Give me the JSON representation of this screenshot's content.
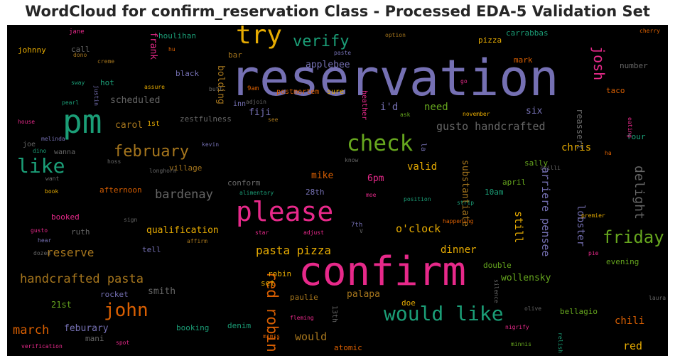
{
  "title": "WordCloud for confirm_reservation Class - Processed EDA-5 Validation Set",
  "chart_data": {
    "type": "wordcloud",
    "title": "WordCloud for confirm_reservation Class - Processed EDA-5 Validation Set",
    "background": "#000000",
    "colormap": [
      "#1b9e77",
      "#d95f02",
      "#7570b3",
      "#e7298a",
      "#66a61e",
      "#e6ab02",
      "#a6761d",
      "#666666"
    ],
    "words": [
      {
        "text": "reservation",
        "size": 70,
        "color": "#7570b3"
      },
      {
        "text": "confirm",
        "size": 56,
        "color": "#e7298a"
      },
      {
        "text": "pm",
        "size": 46,
        "color": "#1b9e77"
      },
      {
        "text": "please",
        "size": 38,
        "color": "#e7298a"
      },
      {
        "text": "try",
        "size": 36,
        "color": "#e6ab02"
      },
      {
        "text": "check",
        "size": 31,
        "color": "#66a61e"
      },
      {
        "text": "would like",
        "size": 28,
        "color": "#1b9e77"
      },
      {
        "text": "like",
        "size": 28,
        "color": "#1b9e77"
      },
      {
        "text": "john",
        "size": 26,
        "color": "#d95f02"
      },
      {
        "text": "friday",
        "size": 24,
        "color": "#66a61e"
      },
      {
        "text": "verify",
        "size": 22,
        "color": "#1b9e77"
      },
      {
        "text": "february",
        "size": 22,
        "color": "#a6761d"
      },
      {
        "text": "red robin",
        "size": 21,
        "color": "#d95f02"
      },
      {
        "text": "josh",
        "size": 20,
        "color": "#e7298a"
      },
      {
        "text": "delight",
        "size": 18,
        "color": "#666666"
      },
      {
        "text": "bardenay",
        "size": 17,
        "color": "#666666"
      },
      {
        "text": "handcrafted pasta",
        "size": 17,
        "color": "#a6761d"
      },
      {
        "text": "march",
        "size": 17,
        "color": "#d95f02"
      },
      {
        "text": "pasta pizza",
        "size": 16,
        "color": "#e6ab02"
      },
      {
        "text": "reserve",
        "size": 16,
        "color": "#a6761d"
      },
      {
        "text": "o'clock",
        "size": 15,
        "color": "#e6ab02"
      },
      {
        "text": "still",
        "size": 15,
        "color": "#e6ab02"
      },
      {
        "text": "gusto handcrafted",
        "size": 15,
        "color": "#666666"
      },
      {
        "text": "arriere pensee",
        "size": 15,
        "color": "#7570b3"
      },
      {
        "text": "would",
        "size": 15,
        "color": "#a6761d"
      },
      {
        "text": "red",
        "size": 15,
        "color": "#e6ab02"
      },
      {
        "text": "i'd",
        "size": 14,
        "color": "#7570b3"
      },
      {
        "text": "need",
        "size": 14,
        "color": "#66a61e"
      },
      {
        "text": "chris",
        "size": 14,
        "color": "#e6ab02"
      },
      {
        "text": "lobster",
        "size": 14,
        "color": "#7570b3"
      },
      {
        "text": "dinner",
        "size": 14,
        "color": "#e6ab02"
      },
      {
        "text": "chili",
        "size": 14,
        "color": "#d95f02"
      },
      {
        "text": "valid",
        "size": 14,
        "color": "#e6ab02"
      },
      {
        "text": "substantiate",
        "size": 13,
        "color": "#a6761d"
      },
      {
        "text": "qualification",
        "size": 13,
        "color": "#e6ab02"
      },
      {
        "text": "wollensky",
        "size": 13,
        "color": "#66a61e"
      },
      {
        "text": "bolding",
        "size": 13,
        "color": "#a6761d"
      },
      {
        "text": "applebee",
        "size": 13,
        "color": "#7570b3"
      },
      {
        "text": "frank",
        "size": 13,
        "color": "#e7298a"
      },
      {
        "text": "six",
        "size": 13,
        "color": "#7570b3"
      },
      {
        "text": "scheduled",
        "size": 13,
        "color": "#666666"
      },
      {
        "text": "carol",
        "size": 13,
        "color": "#a6761d"
      },
      {
        "text": "fiji",
        "size": 13,
        "color": "#7570b3"
      },
      {
        "text": "6pm",
        "size": 13,
        "color": "#e7298a"
      },
      {
        "text": "mike",
        "size": 13,
        "color": "#d95f02"
      },
      {
        "text": "smith",
        "size": 13,
        "color": "#666666"
      },
      {
        "text": "feburary",
        "size": 13,
        "color": "#7570b3"
      },
      {
        "text": "palapa",
        "size": 13,
        "color": "#a6761d"
      },
      {
        "text": "21st",
        "size": 12,
        "color": "#66a61e"
      },
      {
        "text": "reassert",
        "size": 12,
        "color": "#666666"
      },
      {
        "text": "sally",
        "size": 11,
        "color": "#66a61e"
      },
      {
        "text": "zestfulness",
        "size": 11,
        "color": "#666666"
      },
      {
        "text": "black",
        "size": 11,
        "color": "#7570b3"
      },
      {
        "text": "mark",
        "size": 11,
        "color": "#d95f02"
      },
      {
        "text": "carrabbas",
        "size": 11,
        "color": "#1b9e77"
      },
      {
        "text": "pizza",
        "size": 11,
        "color": "#e6ab02"
      },
      {
        "text": "number",
        "size": 11,
        "color": "#666666"
      },
      {
        "text": "taco",
        "size": 11,
        "color": "#d95f02"
      },
      {
        "text": "four",
        "size": 11,
        "color": "#1b9e77"
      },
      {
        "text": "houlihan",
        "size": 11,
        "color": "#1b9e77"
      },
      {
        "text": "call",
        "size": 11,
        "color": "#666666"
      },
      {
        "text": "bar",
        "size": 11,
        "color": "#a6761d"
      },
      {
        "text": "hot",
        "size": 11,
        "color": "#1b9e77"
      },
      {
        "text": "village",
        "size": 11,
        "color": "#a6761d"
      },
      {
        "text": "afternoon",
        "size": 11,
        "color": "#d95f02"
      },
      {
        "text": "booked",
        "size": 11,
        "color": "#e7298a"
      },
      {
        "text": "ruth",
        "size": 11,
        "color": "#666666"
      },
      {
        "text": "tell",
        "size": 11,
        "color": "#7570b3"
      },
      {
        "text": "rocket",
        "size": 11,
        "color": "#7570b3"
      },
      {
        "text": "mani",
        "size": 11,
        "color": "#666666"
      },
      {
        "text": "booking",
        "size": 11,
        "color": "#1b9e77"
      },
      {
        "text": "denim",
        "size": 11,
        "color": "#1b9e77"
      },
      {
        "text": "doe",
        "size": 11,
        "color": "#e6ab02"
      },
      {
        "text": "atomic",
        "size": 11,
        "color": "#d95f02"
      },
      {
        "text": "bellagio",
        "size": 11,
        "color": "#66a61e"
      },
      {
        "text": "evening",
        "size": 11,
        "color": "#66a61e"
      },
      {
        "text": "double",
        "size": 11,
        "color": "#66a61e"
      },
      {
        "text": "paulie",
        "size": 11,
        "color": "#a6761d"
      },
      {
        "text": "robin",
        "size": 11,
        "color": "#e6ab02"
      },
      {
        "text": "set",
        "size": 11,
        "color": "#e6ab02"
      },
      {
        "text": "10am",
        "size": 11,
        "color": "#1b9e77"
      },
      {
        "text": "april",
        "size": 11,
        "color": "#66a61e"
      },
      {
        "text": "28th",
        "size": 11,
        "color": "#7570b3"
      },
      {
        "text": "conform",
        "size": 11,
        "color": "#666666"
      },
      {
        "text": "johnny",
        "size": 11,
        "color": "#e6ab02"
      },
      {
        "text": "joe",
        "size": 10,
        "color": "#666666"
      },
      {
        "text": "wanna",
        "size": 10,
        "color": "#666666"
      },
      {
        "text": "heather",
        "size": 10,
        "color": "#e7298a"
      },
      {
        "text": "sure",
        "size": 10,
        "color": "#e6ab02"
      },
      {
        "text": "postmortem",
        "size": 10,
        "color": "#d95f02"
      },
      {
        "text": "inn",
        "size": 10,
        "color": "#7570b3"
      },
      {
        "text": "1st",
        "size": 10,
        "color": "#e6ab02"
      },
      {
        "text": "la",
        "size": 10,
        "color": "#7570b3"
      },
      {
        "text": "13th",
        "size": 10,
        "color": "#666666"
      },
      {
        "text": "7th",
        "size": 9,
        "color": "#7570b3"
      },
      {
        "text": "9am",
        "size": 9,
        "color": "#d95f02"
      },
      {
        "text": "jane",
        "size": 9,
        "color": "#e7298a"
      },
      {
        "text": "dono",
        "size": 8,
        "color": "#a6761d"
      },
      {
        "text": "creme",
        "size": 8,
        "color": "#a6761d"
      },
      {
        "text": "hu",
        "size": 8,
        "color": "#d95f02"
      },
      {
        "text": "sway",
        "size": 8,
        "color": "#1b9e77"
      },
      {
        "text": "justin",
        "size": 8,
        "color": "#7570b3"
      },
      {
        "text": "pearl",
        "size": 8,
        "color": "#1b9e77"
      },
      {
        "text": "assure",
        "size": 8,
        "color": "#e6ab02"
      },
      {
        "text": "butt",
        "size": 8,
        "color": "#666666"
      },
      {
        "text": "adjoin",
        "size": 8,
        "color": "#666666"
      },
      {
        "text": "see",
        "size": 8,
        "color": "#a6761d"
      },
      {
        "text": "option",
        "size": 8,
        "color": "#a6761d"
      },
      {
        "text": "paste",
        "size": 8,
        "color": "#7570b3"
      },
      {
        "text": "go",
        "size": 8,
        "color": "#e7298a"
      },
      {
        "text": "november",
        "size": 8,
        "color": "#e6ab02"
      },
      {
        "text": "ask",
        "size": 8,
        "color": "#66a61e"
      },
      {
        "text": "know",
        "size": 8,
        "color": "#666666"
      },
      {
        "text": "cherry",
        "size": 8,
        "color": "#d95f02"
      },
      {
        "text": "eating",
        "size": 8,
        "color": "#e7298a"
      },
      {
        "text": "ha",
        "size": 8,
        "color": "#d95f02"
      },
      {
        "text": "chilli",
        "size": 8,
        "color": "#666666"
      },
      {
        "text": "house",
        "size": 8,
        "color": "#e7298a"
      },
      {
        "text": "melinda",
        "size": 8,
        "color": "#7570b3"
      },
      {
        "text": "dino",
        "size": 8,
        "color": "#1b9e77"
      },
      {
        "text": "hoss",
        "size": 8,
        "color": "#666666"
      },
      {
        "text": "kevin",
        "size": 8,
        "color": "#7570b3"
      },
      {
        "text": "longhorn",
        "size": 8,
        "color": "#666666"
      },
      {
        "text": "want",
        "size": 8,
        "color": "#666666"
      },
      {
        "text": "book",
        "size": 8,
        "color": "#e6ab02"
      },
      {
        "text": "alimentary",
        "size": 8,
        "color": "#1b9e77"
      },
      {
        "text": "moe",
        "size": 8,
        "color": "#e7298a"
      },
      {
        "text": "position",
        "size": 8,
        "color": "#1b9e77"
      },
      {
        "text": "strip",
        "size": 8,
        "color": "#1b9e77"
      },
      {
        "text": "sign",
        "size": 8,
        "color": "#666666"
      },
      {
        "text": "star",
        "size": 8,
        "color": "#e7298a"
      },
      {
        "text": "adjust",
        "size": 8,
        "color": "#e7298a"
      },
      {
        "text": "V",
        "size": 8,
        "color": "#666666"
      },
      {
        "text": "happening",
        "size": 8,
        "color": "#d95f02"
      },
      {
        "text": "premier",
        "size": 8,
        "color": "#e6ab02"
      },
      {
        "text": "gusto",
        "size": 8,
        "color": "#e7298a"
      },
      {
        "text": "hear",
        "size": 8,
        "color": "#7570b3"
      },
      {
        "text": "affirm",
        "size": 8,
        "color": "#a6761d"
      },
      {
        "text": "dozen",
        "size": 8,
        "color": "#666666"
      },
      {
        "text": "pie",
        "size": 8,
        "color": "#e7298a"
      },
      {
        "text": "silence",
        "size": 8,
        "color": "#666666"
      },
      {
        "text": "laura",
        "size": 8,
        "color": "#666666"
      },
      {
        "text": "olive",
        "size": 8,
        "color": "#666666"
      },
      {
        "text": "fleming",
        "size": 8,
        "color": "#e7298a"
      },
      {
        "text": "mimis",
        "size": 8,
        "color": "#d95f02"
      },
      {
        "text": "nigrify",
        "size": 8,
        "color": "#e7298a"
      },
      {
        "text": "minnis",
        "size": 8,
        "color": "#66a61e"
      },
      {
        "text": "relish",
        "size": 8,
        "color": "#1b9e77"
      },
      {
        "text": "verification",
        "size": 8,
        "color": "#e7298a"
      },
      {
        "text": "spot",
        "size": 8,
        "color": "#e7298a"
      }
    ]
  }
}
